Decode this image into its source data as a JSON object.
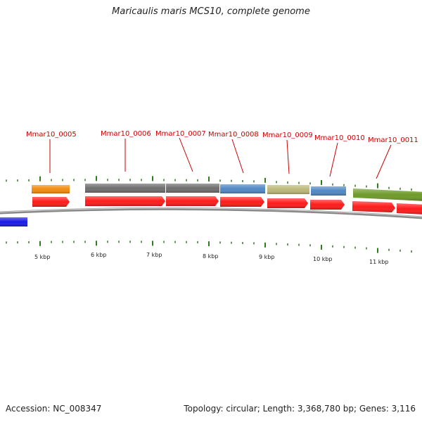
{
  "title": "Maricaulis maris MCS10, complete genome",
  "footer": {
    "accession": "Accession: NC_008347",
    "summary": "Topology: circular; Length: 3,368,780 bp; Genes: 3,116"
  },
  "tick_labels": [
    "5 kbp",
    "6 kbp",
    "7 kbp",
    "8 kbp",
    "9 kbp",
    "10 kbp",
    "11 kbp"
  ],
  "gene_labels": [
    "Mmar10_0005",
    "Mmar10_0006",
    "Mmar10_0007",
    "Mmar10_0008",
    "Mmar10_0009",
    "Mmar10_0010",
    "Mmar10_0011"
  ],
  "colors": {
    "label": "#cc0000",
    "cds": "#ff1a1a",
    "tick": "#2e7d1f",
    "backbone": "#8a8a8a",
    "orange": "#f28c10",
    "gray": "#6e6e6e",
    "blue": "#4f88c4",
    "khaki": "#bcb878",
    "olive": "#6e9a2a",
    "reverse": "#1a1ae6"
  }
}
